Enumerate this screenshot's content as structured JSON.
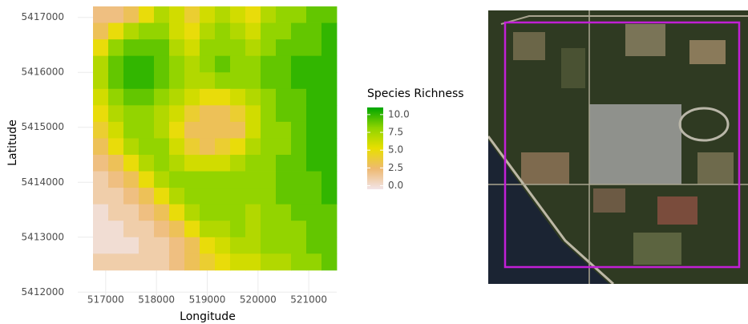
{
  "chart_data": {
    "type": "heatmap",
    "xlabel": "Longitude",
    "ylabel": "Latitude",
    "legend_title": "Species Richness",
    "x": [
      516900,
      517200,
      517500,
      517800,
      518100,
      518400,
      518700,
      519000,
      519300,
      519600,
      519900,
      520200,
      520500,
      520800,
      521100,
      521400
    ],
    "y": [
      5417050,
      5416750,
      5416450,
      5416150,
      5415850,
      5415550,
      5415250,
      5414950,
      5414650,
      5414350,
      5414050,
      5413750,
      5413450,
      5413150,
      5412850,
      5412550
    ],
    "z": [
      [
        2,
        2,
        3,
        5,
        7,
        6,
        4,
        6,
        7,
        6,
        5,
        7,
        8,
        8,
        9,
        9
      ],
      [
        3,
        5,
        7,
        8,
        8,
        6,
        5,
        7,
        8,
        7,
        6,
        8,
        8,
        9,
        9,
        10
      ],
      [
        5,
        8,
        9,
        9,
        9,
        7,
        6,
        8,
        8,
        8,
        7,
        8,
        9,
        9,
        9,
        10
      ],
      [
        7,
        9,
        10,
        10,
        9,
        8,
        7,
        8,
        9,
        8,
        8,
        9,
        9,
        10,
        10,
        10
      ],
      [
        7,
        9,
        10,
        10,
        9,
        8,
        7,
        7,
        8,
        8,
        8,
        9,
        9,
        10,
        10,
        10
      ],
      [
        6,
        8,
        9,
        9,
        8,
        7,
        6,
        5,
        5,
        6,
        7,
        8,
        9,
        9,
        10,
        10
      ],
      [
        5,
        7,
        8,
        8,
        7,
        6,
        4,
        3,
        3,
        4,
        6,
        8,
        9,
        9,
        10,
        10
      ],
      [
        4,
        6,
        8,
        8,
        7,
        5,
        3,
        3,
        3,
        3,
        6,
        8,
        8,
        9,
        10,
        10
      ],
      [
        3,
        5,
        7,
        8,
        8,
        6,
        4,
        3,
        4,
        5,
        7,
        8,
        8,
        9,
        10,
        10
      ],
      [
        2,
        3,
        5,
        7,
        8,
        7,
        6,
        6,
        6,
        7,
        8,
        8,
        9,
        9,
        10,
        10
      ],
      [
        1,
        2,
        3,
        5,
        7,
        8,
        8,
        8,
        8,
        8,
        8,
        8,
        9,
        9,
        9,
        10
      ],
      [
        1,
        1,
        2,
        3,
        5,
        7,
        8,
        8,
        8,
        8,
        8,
        8,
        9,
        9,
        9,
        10
      ],
      [
        0,
        1,
        1,
        2,
        3,
        5,
        7,
        8,
        8,
        8,
        7,
        8,
        8,
        9,
        9,
        9
      ],
      [
        0,
        0,
        1,
        1,
        2,
        3,
        5,
        7,
        7,
        8,
        7,
        8,
        8,
        8,
        9,
        9
      ],
      [
        0,
        0,
        0,
        1,
        1,
        2,
        3,
        5,
        6,
        7,
        7,
        8,
        8,
        8,
        9,
        9
      ],
      [
        1,
        1,
        1,
        1,
        1,
        2,
        3,
        4,
        5,
        6,
        6,
        7,
        7,
        8,
        8,
        9
      ]
    ],
    "xlim": [
      516450,
      521550
    ],
    "ylim": [
      5411800,
      5417200
    ],
    "xticks": [
      517000,
      518000,
      519000,
      520000,
      521000
    ],
    "yticks": [
      5412000,
      5413000,
      5414000,
      5415000,
      5416000,
      5417000
    ],
    "zlim": [
      -0.5,
      11
    ],
    "zticks": [
      {
        "value": 0,
        "label": "0.0"
      },
      {
        "value": 2.5,
        "label": "2.5"
      },
      {
        "value": 5,
        "label": "5.0"
      },
      {
        "value": 7.5,
        "label": "7.5"
      },
      {
        "value": 10,
        "label": "10.0"
      }
    ],
    "colors": [
      "#f2e4e8",
      "#eeb971",
      "#e8df00",
      "#8fd400",
      "#00a600"
    ],
    "grid": true
  }
}
